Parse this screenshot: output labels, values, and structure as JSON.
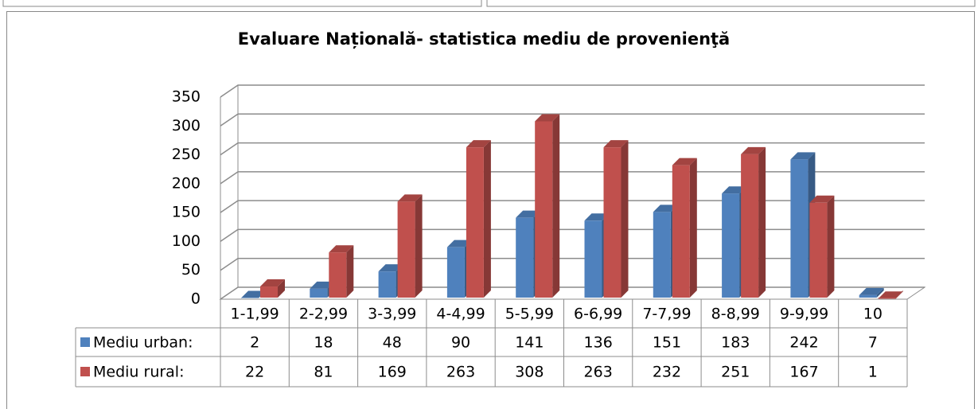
{
  "chart_data": {
    "type": "bar3d",
    "title": "Evaluare Națională- statistica mediu de provenienţă",
    "categories": [
      "1-1,99",
      "2-2,99",
      "3-3,99",
      "4-4,99",
      "5-5,99",
      "6-6,99",
      "7-7,99",
      "8-8,99",
      "9-9,99",
      "10"
    ],
    "series": [
      {
        "name": "Mediu urban:",
        "color": "#4f81bd",
        "values": [
          2,
          18,
          48,
          90,
          141,
          136,
          151,
          183,
          242,
          7
        ]
      },
      {
        "name": "Mediu rural:",
        "color": "#c0504d",
        "values": [
          22,
          81,
          169,
          263,
          308,
          263,
          232,
          251,
          167,
          1
        ]
      }
    ],
    "ylim": [
      0,
      350
    ],
    "yticks": [
      0,
      50,
      100,
      150,
      200,
      250,
      300,
      350
    ],
    "grid": true
  }
}
